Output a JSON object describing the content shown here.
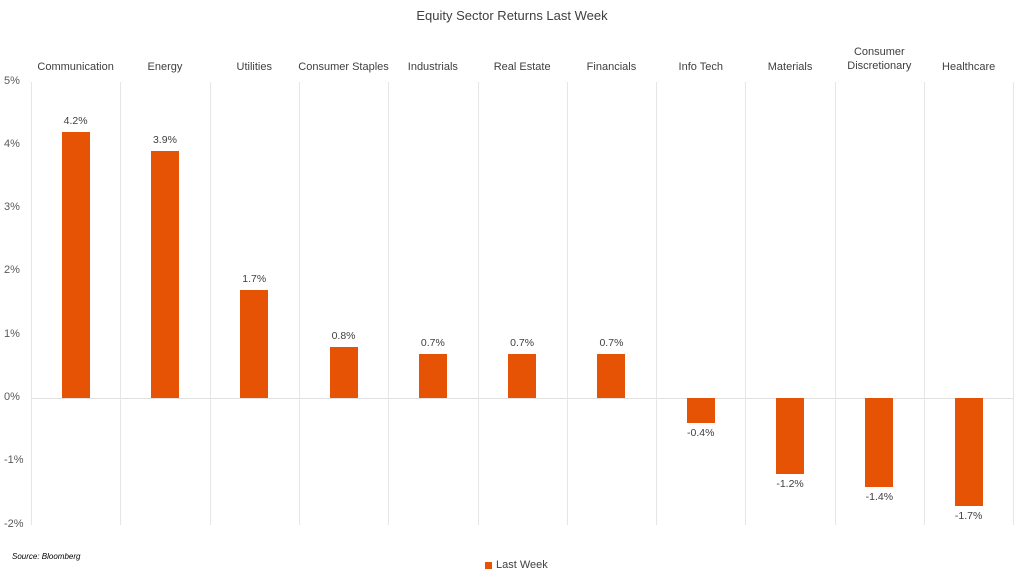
{
  "title": "Equity Sector Returns Last Week",
  "source": "Source: Bloomberg",
  "legend": {
    "label": "Last Week",
    "color": "#E65304"
  },
  "y_ticks": [
    "5%",
    "4%",
    "3%",
    "2%",
    "1%",
    "0%",
    "-1%",
    "-2%"
  ],
  "categories": [
    {
      "label": "Communication",
      "value": 4.2,
      "value_label": "4.2%"
    },
    {
      "label": "Energy",
      "value": 3.9,
      "value_label": "3.9%"
    },
    {
      "label": "Utilities",
      "value": 1.7,
      "value_label": "1.7%"
    },
    {
      "label": "Consumer Staples",
      "value": 0.8,
      "value_label": "0.8%"
    },
    {
      "label": "Industrials",
      "value": 0.7,
      "value_label": "0.7%"
    },
    {
      "label": "Real Estate",
      "value": 0.7,
      "value_label": "0.7%"
    },
    {
      "label": "Financials",
      "value": 0.7,
      "value_label": "0.7%"
    },
    {
      "label": "Info Tech",
      "value": -0.4,
      "value_label": "-0.4%"
    },
    {
      "label": "Materials",
      "value": -1.2,
      "value_label": "-1.2%"
    },
    {
      "label": "Consumer\nDiscretionary",
      "value": -1.4,
      "value_label": "-1.4%"
    },
    {
      "label": "Healthcare",
      "value": -1.7,
      "value_label": "-1.7%"
    }
  ],
  "chart_data": {
    "type": "bar",
    "title": "Equity Sector Returns Last Week",
    "categories": [
      "Communication",
      "Energy",
      "Utilities",
      "Consumer Staples",
      "Industrials",
      "Real Estate",
      "Financials",
      "Info Tech",
      "Materials",
      "Consumer Discretionary",
      "Healthcare"
    ],
    "series": [
      {
        "name": "Last Week",
        "color": "#E65304",
        "values": [
          4.2,
          3.9,
          1.7,
          0.8,
          0.7,
          0.7,
          0.7,
          -0.4,
          -1.2,
          -1.4,
          -1.7
        ]
      }
    ],
    "xlabel": "",
    "ylabel": "",
    "ylim": [
      -2,
      5
    ],
    "y_tick_labels": [
      "-2%",
      "-1%",
      "0%",
      "1%",
      "2%",
      "3%",
      "4%",
      "5%"
    ],
    "category_axis_position": "top",
    "data_labels": true,
    "grid": "vertical category separators",
    "legend_position": "bottom",
    "annotations": [
      "Source: Bloomberg"
    ]
  }
}
